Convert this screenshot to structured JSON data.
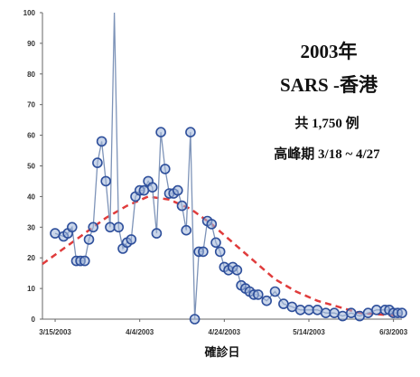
{
  "chart_data": {
    "type": "line",
    "title": "",
    "xlabel": "確診日",
    "ylabel": "",
    "ylim": [
      0,
      100
    ],
    "y_ticks": [
      "0",
      "10",
      "20",
      "30",
      "40",
      "50",
      "60",
      "70",
      "80",
      "90",
      "100"
    ],
    "x_tick_labels": [
      "3/15/2003",
      "4/4/2003",
      "4/24/2003",
      "5/14/2003",
      "6/3/2003"
    ],
    "x_start": "3/12/2003",
    "x_end": "6/5/2003",
    "grid": false,
    "annotations": [
      "2003年",
      "SARS -香港",
      "共 1,750 例",
      "高峰期 3/18 ~ 4/27"
    ],
    "series": [
      {
        "style": "line-markers",
        "color": "#7d93b8",
        "marker_color": "#2e4f9b",
        "x": [
          "3/15/2003",
          "3/17/2003",
          "3/18/2003",
          "3/19/2003",
          "3/20/2003",
          "3/21/2003",
          "3/22/2003",
          "3/23/2003",
          "3/24/2003",
          "3/25/2003",
          "3/26/2003",
          "3/27/2003",
          "3/28/2003",
          "3/29/2003",
          "3/30/2003",
          "3/31/2003",
          "4/1/2003",
          "4/2/2003",
          "4/3/2003",
          "4/4/2003",
          "4/5/2003",
          "4/6/2003",
          "4/7/2003",
          "4/8/2003",
          "4/9/2003",
          "4/10/2003",
          "4/11/2003",
          "4/12/2003",
          "4/13/2003",
          "4/14/2003",
          "4/15/2003",
          "4/16/2003",
          "4/17/2003",
          "4/18/2003",
          "4/19/2003",
          "4/20/2003",
          "4/21/2003",
          "4/22/2003",
          "4/23/2003",
          "4/24/2003",
          "4/25/2003",
          "4/26/2003",
          "4/27/2003",
          "4/28/2003",
          "4/29/2003",
          "4/30/2003",
          "5/1/2003",
          "5/2/2003",
          "5/4/2003",
          "5/6/2003",
          "5/8/2003",
          "5/10/2003",
          "5/12/2003",
          "5/14/2003",
          "5/16/2003",
          "5/18/2003",
          "5/20/2003",
          "5/22/2003",
          "5/24/2003",
          "5/26/2003",
          "5/28/2003",
          "5/30/2003",
          "6/1/2003",
          "6/2/2003",
          "6/3/2003",
          "6/4/2003",
          "6/5/2003"
        ],
        "y": [
          28,
          27,
          28,
          30,
          19,
          19,
          19,
          26,
          30,
          51,
          58,
          45,
          30,
          100,
          30,
          23,
          25,
          26,
          40,
          42,
          42,
          45,
          43,
          28,
          61,
          49,
          41,
          41,
          42,
          37,
          29,
          61,
          0,
          22,
          22,
          32,
          31,
          25,
          22,
          17,
          16,
          17,
          16,
          11,
          10,
          9,
          8,
          8,
          6,
          9,
          5,
          4,
          3,
          3,
          3,
          2,
          2,
          1,
          2,
          1,
          2,
          3,
          3,
          3,
          2,
          2,
          2
        ]
      },
      {
        "style": "dashed",
        "color": "#e03c3c",
        "x": [
          "3/12/2003",
          "3/17/2003",
          "3/22/2003",
          "3/27/2003",
          "4/1/2003",
          "4/6/2003",
          "4/11/2003",
          "4/16/2003",
          "4/21/2003",
          "4/26/2003",
          "5/1/2003",
          "5/6/2003",
          "5/11/2003",
          "5/16/2003",
          "5/21/2003",
          "5/26/2003",
          "5/31/2003",
          "6/5/2003"
        ],
        "y": [
          18,
          23,
          28,
          33,
          37,
          40,
          39,
          36,
          31,
          25,
          19,
          13,
          9,
          6,
          4,
          2,
          1.5,
          1
        ]
      }
    ]
  }
}
